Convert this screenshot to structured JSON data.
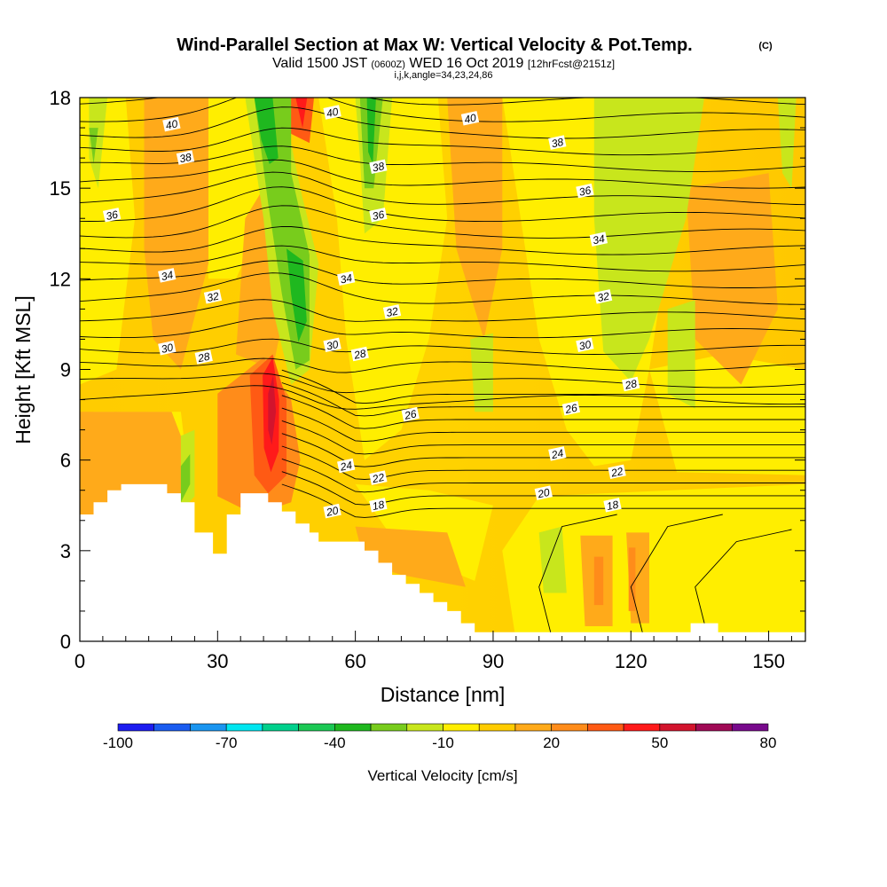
{
  "chart_data": {
    "type": "heatmap",
    "title": {
      "main": "Wind-Parallel Section at Max W: Vertical Velocity & Pot.Temp.",
      "copyright": "(C)",
      "valid_prefix": "Valid 1500 JST",
      "valid_utc": "(0600Z)",
      "valid_date": "WED 16 Oct 2019",
      "forecast": "[12hrFcst@2151z]",
      "indices": "i,j,k,angle=34,23,24,86"
    },
    "xlabel": "Distance [nm]",
    "ylabel": "Height [Kft MSL]",
    "xlim": [
      0,
      158
    ],
    "ylim": [
      0,
      18
    ],
    "x_ticks": [
      "0",
      "30",
      "60",
      "90",
      "120",
      "150"
    ],
    "y_ticks": [
      "0",
      "3",
      "6",
      "9",
      "12",
      "15",
      "18"
    ],
    "colorbar": {
      "label": "Vertical Velocity [cm/s]",
      "tick_labels": [
        "-100",
        "-70",
        "-40",
        "-10",
        "20",
        "50",
        "80"
      ],
      "colors": [
        "#1c1cf0",
        "#1a5cf0",
        "#1a95f0",
        "#00e6f0",
        "#00d08c",
        "#1bc854",
        "#1fb81f",
        "#78cc1c",
        "#c8e61c",
        "#ffee00",
        "#ffcc00",
        "#ffaa1a",
        "#ff8c1a",
        "#ff5a14",
        "#ff1a1a",
        "#d2142d",
        "#a00a55",
        "#780a8c"
      ]
    },
    "contour_labels": [
      {
        "text": "40",
        "x": 20,
        "y": 17.1
      },
      {
        "text": "40",
        "x": 55,
        "y": 17.5
      },
      {
        "text": "40",
        "x": 85,
        "y": 17.3
      },
      {
        "text": "38",
        "x": 23,
        "y": 16.0
      },
      {
        "text": "38",
        "x": 65,
        "y": 15.7
      },
      {
        "text": "38",
        "x": 104,
        "y": 16.5
      },
      {
        "text": "36",
        "x": 7,
        "y": 14.1
      },
      {
        "text": "36",
        "x": 65,
        "y": 14.1
      },
      {
        "text": "36",
        "x": 110,
        "y": 14.9
      },
      {
        "text": "34",
        "x": 19,
        "y": 12.1
      },
      {
        "text": "34",
        "x": 58,
        "y": 12.0
      },
      {
        "text": "34",
        "x": 113,
        "y": 13.3
      },
      {
        "text": "32",
        "x": 29,
        "y": 11.4
      },
      {
        "text": "32",
        "x": 68,
        "y": 10.9
      },
      {
        "text": "32",
        "x": 114,
        "y": 11.4
      },
      {
        "text": "30",
        "x": 19,
        "y": 9.7
      },
      {
        "text": "30",
        "x": 55,
        "y": 9.8
      },
      {
        "text": "30",
        "x": 110,
        "y": 9.8
      },
      {
        "text": "28",
        "x": 27,
        "y": 9.4
      },
      {
        "text": "28",
        "x": 61,
        "y": 9.5
      },
      {
        "text": "28",
        "x": 120,
        "y": 8.5
      },
      {
        "text": "26",
        "x": 72,
        "y": 7.5
      },
      {
        "text": "26",
        "x": 107,
        "y": 7.7
      },
      {
        "text": "24",
        "x": 58,
        "y": 5.8
      },
      {
        "text": "24",
        "x": 104,
        "y": 6.2
      },
      {
        "text": "22",
        "x": 65,
        "y": 5.4
      },
      {
        "text": "22",
        "x": 117,
        "y": 5.6
      },
      {
        "text": "20",
        "x": 55,
        "y": 4.3
      },
      {
        "text": "20",
        "x": 101,
        "y": 4.9
      },
      {
        "text": "18",
        "x": 65,
        "y": 4.5
      },
      {
        "text": "18",
        "x": 116,
        "y": 4.5
      }
    ]
  }
}
